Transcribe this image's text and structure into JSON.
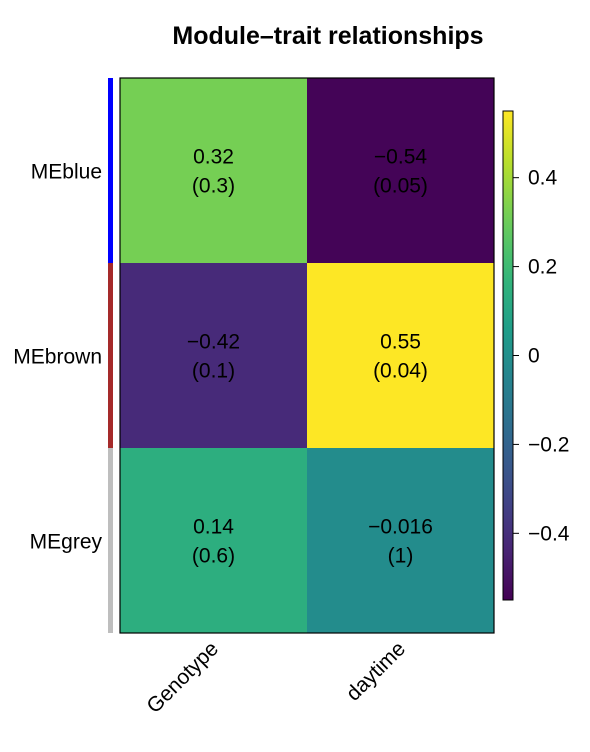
{
  "chart_data": {
    "type": "heatmap",
    "title": "Module–trait relationships",
    "rows": [
      "MEblue",
      "MEbrown",
      "MEgrey"
    ],
    "row_colors": [
      "#0000ff",
      "#a52a2a",
      "#bebebe"
    ],
    "columns": [
      "Genotype",
      "daytime"
    ],
    "values": [
      [
        0.32,
        -0.54
      ],
      [
        -0.42,
        0.55
      ],
      [
        0.14,
        -0.016
      ]
    ],
    "cell_labels": [
      [
        "0.32",
        "−0.54"
      ],
      [
        "−0.42",
        "0.55"
      ],
      [
        "0.14",
        "−0.016"
      ]
    ],
    "p_values": [
      [
        "(0.3)",
        "(0.05)"
      ],
      [
        "(0.1)",
        "(0.04)"
      ],
      [
        "(0.6)",
        "(1)"
      ]
    ],
    "colorbar": {
      "range": [
        -0.55,
        0.55
      ],
      "ticks": [
        0.4,
        0.2,
        0,
        -0.2,
        -0.4
      ],
      "tick_labels": [
        "0.4",
        "0.2",
        "0",
        "−0.2",
        "−0.4"
      ],
      "colormap": "viridis"
    }
  }
}
